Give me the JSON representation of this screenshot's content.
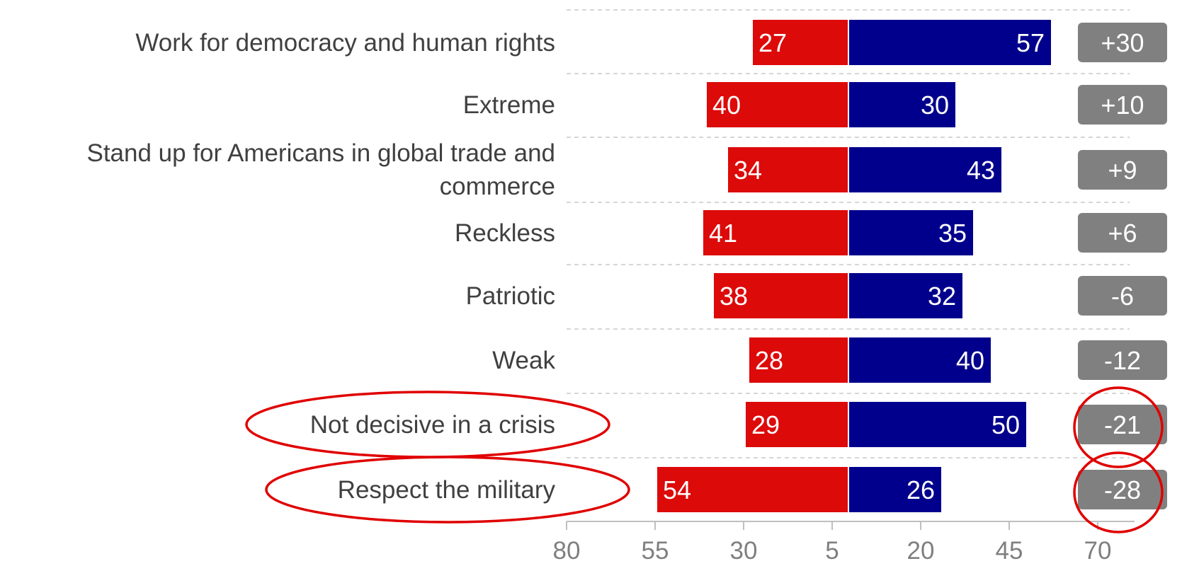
{
  "chart_data": {
    "type": "bar",
    "orientation": "horizontal",
    "layout": "diverging",
    "categories": [
      "Work for democracy and human rights",
      "Extreme",
      "Stand up for Americans in global trade and commerce",
      "Reckless",
      "Patriotic",
      "Weak",
      "Not decisive in a crisis",
      "Respect the military"
    ],
    "series": [
      {
        "values": [
          27,
          40,
          34,
          41,
          38,
          28,
          29,
          54
        ],
        "color": "#dd0a0a",
        "side": "left"
      },
      {
        "values": [
          57,
          30,
          43,
          35,
          32,
          40,
          50,
          26
        ],
        "color": "#00008c",
        "side": "right"
      }
    ],
    "differences": [
      "+30",
      "+10",
      "+9",
      "+6",
      "-6",
      "-12",
      "-21",
      "-28"
    ],
    "difference_badge_color": "#808080",
    "circled_categories": [
      "Not decisive in a crisis",
      "Respect the military"
    ],
    "circled_differences": [
      "-21",
      "-28"
    ],
    "highlight_color": "#e00000",
    "x_tick_labels": [
      "80",
      "55",
      "30",
      "5",
      "20",
      "45",
      "70"
    ],
    "grid": "dashed horizontal separators",
    "legend": "none"
  }
}
